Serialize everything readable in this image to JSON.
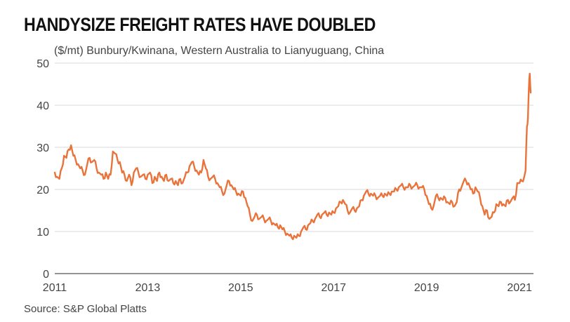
{
  "header": {
    "title": "HANDYSIZE FREIGHT RATES HAVE DOUBLED",
    "subtitle": "($/mt) Bunbury/Kwinana, Western Australia to Lianyuguang, China"
  },
  "footer": {
    "source": "Source: S&P Global Platts"
  },
  "colors": {
    "series": "#e8743b",
    "grid": "#d9d9d9",
    "axis": "#555555"
  },
  "chart_data": {
    "type": "line",
    "title": "HANDYSIZE FREIGHT RATES HAVE DOUBLED",
    "subtitle": "($/mt) Bunbury/Kwinana, Western Australia to Lianyuguang, China",
    "xlabel": "",
    "ylabel": "($/mt)",
    "xlim": [
      2011,
      2021.3
    ],
    "ylim": [
      0,
      50
    ],
    "x_ticks": [
      2011,
      2013,
      2015,
      2017,
      2019,
      2021
    ],
    "x_tick_labels": [
      "2011",
      "2013",
      "2015",
      "2017",
      "2019",
      "2021"
    ],
    "y_ticks": [
      0,
      10,
      20,
      30,
      40,
      50
    ],
    "y_tick_labels": [
      "0",
      "10",
      "20",
      "30",
      "40",
      "50"
    ],
    "grid": "horizontal",
    "legend": "none",
    "series": [
      {
        "points": [
          [
            2011.0,
            24
          ],
          [
            2011.05,
            23
          ],
          [
            2011.1,
            22.5
          ],
          [
            2011.15,
            25
          ],
          [
            2011.2,
            28
          ],
          [
            2011.25,
            27.5
          ],
          [
            2011.3,
            29.5
          ],
          [
            2011.35,
            30.5
          ],
          [
            2011.4,
            28
          ],
          [
            2011.45,
            27
          ],
          [
            2011.5,
            26
          ],
          [
            2011.55,
            25
          ],
          [
            2011.6,
            24.5
          ],
          [
            2011.65,
            23.5
          ],
          [
            2011.7,
            26
          ],
          [
            2011.75,
            27.5
          ],
          [
            2011.8,
            26.5
          ],
          [
            2011.85,
            27
          ],
          [
            2011.9,
            25
          ],
          [
            2011.95,
            24
          ],
          [
            2012.0,
            23.5
          ],
          [
            2012.05,
            22.5
          ],
          [
            2012.1,
            24
          ],
          [
            2012.15,
            22.5
          ],
          [
            2012.2,
            23.5
          ],
          [
            2012.25,
            29
          ],
          [
            2012.3,
            28.5
          ],
          [
            2012.35,
            27
          ],
          [
            2012.4,
            26.5
          ],
          [
            2012.45,
            24
          ],
          [
            2012.5,
            23.5
          ],
          [
            2012.55,
            22
          ],
          [
            2012.6,
            23.5
          ],
          [
            2012.65,
            21
          ],
          [
            2012.7,
            24
          ],
          [
            2012.75,
            25
          ],
          [
            2012.8,
            24
          ],
          [
            2012.85,
            23
          ],
          [
            2012.9,
            23.5
          ],
          [
            2012.95,
            22.5
          ],
          [
            2013.0,
            23.5
          ],
          [
            2013.05,
            24
          ],
          [
            2013.1,
            21.5
          ],
          [
            2013.15,
            23
          ],
          [
            2013.2,
            22
          ],
          [
            2013.25,
            24
          ],
          [
            2013.3,
            23
          ],
          [
            2013.35,
            22
          ],
          [
            2013.4,
            23.5
          ],
          [
            2013.45,
            22
          ],
          [
            2013.5,
            22.5
          ],
          [
            2013.55,
            21.5
          ],
          [
            2013.6,
            22
          ],
          [
            2013.65,
            21
          ],
          [
            2013.7,
            22.5
          ],
          [
            2013.75,
            21.5
          ],
          [
            2013.8,
            23
          ],
          [
            2013.85,
            24
          ],
          [
            2013.9,
            25.5
          ],
          [
            2013.95,
            26.5
          ],
          [
            2014.0,
            25.5
          ],
          [
            2014.05,
            24.5
          ],
          [
            2014.1,
            23.5
          ],
          [
            2014.15,
            24
          ],
          [
            2014.2,
            27
          ],
          [
            2014.25,
            25
          ],
          [
            2014.3,
            23
          ],
          [
            2014.35,
            22.5
          ],
          [
            2014.4,
            23
          ],
          [
            2014.45,
            22.5
          ],
          [
            2014.5,
            21.5
          ],
          [
            2014.55,
            20.5
          ],
          [
            2014.6,
            19.5
          ],
          [
            2014.65,
            19
          ],
          [
            2014.7,
            21
          ],
          [
            2014.75,
            22
          ],
          [
            2014.8,
            21
          ],
          [
            2014.85,
            20
          ],
          [
            2014.9,
            19.5
          ],
          [
            2014.95,
            19
          ],
          [
            2015.0,
            18.5
          ],
          [
            2015.05,
            19.5
          ],
          [
            2015.1,
            18
          ],
          [
            2015.15,
            16
          ],
          [
            2015.2,
            14
          ],
          [
            2015.25,
            12.5
          ],
          [
            2015.3,
            13.5
          ],
          [
            2015.35,
            14
          ],
          [
            2015.4,
            13
          ],
          [
            2015.45,
            13.5
          ],
          [
            2015.5,
            13
          ],
          [
            2015.55,
            12.5
          ],
          [
            2015.6,
            13
          ],
          [
            2015.65,
            12.5
          ],
          [
            2015.7,
            12
          ],
          [
            2015.75,
            11.5
          ],
          [
            2015.8,
            11
          ],
          [
            2015.85,
            11.5
          ],
          [
            2015.9,
            10.5
          ],
          [
            2015.95,
            10
          ],
          [
            2016.0,
            9.5
          ],
          [
            2016.05,
            9
          ],
          [
            2016.1,
            8.5
          ],
          [
            2016.15,
            9
          ],
          [
            2016.2,
            8.5
          ],
          [
            2016.25,
            9
          ],
          [
            2016.3,
            10
          ],
          [
            2016.35,
            11
          ],
          [
            2016.4,
            10.5
          ],
          [
            2016.45,
            11.5
          ],
          [
            2016.5,
            12
          ],
          [
            2016.55,
            12.5
          ],
          [
            2016.6,
            13
          ],
          [
            2016.65,
            14
          ],
          [
            2016.7,
            13.5
          ],
          [
            2016.75,
            14
          ],
          [
            2016.8,
            14.5
          ],
          [
            2016.85,
            14
          ],
          [
            2016.9,
            14.5
          ],
          [
            2016.95,
            14
          ],
          [
            2017.0,
            14.5
          ],
          [
            2017.05,
            15.5
          ],
          [
            2017.1,
            16
          ],
          [
            2017.15,
            17
          ],
          [
            2017.2,
            17.5
          ],
          [
            2017.25,
            16.5
          ],
          [
            2017.3,
            15
          ],
          [
            2017.35,
            14.5
          ],
          [
            2017.4,
            15.5
          ],
          [
            2017.45,
            15
          ],
          [
            2017.5,
            15.5
          ],
          [
            2017.55,
            16
          ],
          [
            2017.6,
            17.5
          ],
          [
            2017.65,
            18.5
          ],
          [
            2017.7,
            19.5
          ],
          [
            2017.75,
            19
          ],
          [
            2017.8,
            19
          ],
          [
            2017.85,
            18.5
          ],
          [
            2017.9,
            18.5
          ],
          [
            2017.95,
            18
          ],
          [
            2018.0,
            18.5
          ],
          [
            2018.05,
            18.5
          ],
          [
            2018.1,
            19
          ],
          [
            2018.15,
            18.5
          ],
          [
            2018.2,
            19
          ],
          [
            2018.25,
            19.5
          ],
          [
            2018.3,
            19.5
          ],
          [
            2018.35,
            20
          ],
          [
            2018.4,
            20.5
          ],
          [
            2018.45,
            21
          ],
          [
            2018.5,
            20.5
          ],
          [
            2018.55,
            20.5
          ],
          [
            2018.6,
            20.5
          ],
          [
            2018.65,
            21
          ],
          [
            2018.7,
            20.5
          ],
          [
            2018.75,
            21
          ],
          [
            2018.8,
            21
          ],
          [
            2018.85,
            20.5
          ],
          [
            2018.9,
            20.5
          ],
          [
            2018.95,
            20
          ],
          [
            2019.0,
            18.5
          ],
          [
            2019.05,
            16.5
          ],
          [
            2019.1,
            15.5
          ],
          [
            2019.15,
            16
          ],
          [
            2019.2,
            18.5
          ],
          [
            2019.25,
            18
          ],
          [
            2019.3,
            18
          ],
          [
            2019.35,
            17.5
          ],
          [
            2019.4,
            18
          ],
          [
            2019.45,
            17
          ],
          [
            2019.5,
            16.5
          ],
          [
            2019.55,
            17
          ],
          [
            2019.6,
            16
          ],
          [
            2019.65,
            17
          ],
          [
            2019.7,
            20
          ],
          [
            2019.75,
            20.5
          ],
          [
            2019.8,
            22
          ],
          [
            2019.85,
            22
          ],
          [
            2019.9,
            21.5
          ],
          [
            2019.95,
            20
          ],
          [
            2020.0,
            19
          ],
          [
            2020.05,
            20.5
          ],
          [
            2020.1,
            19.5
          ],
          [
            2020.15,
            18
          ],
          [
            2020.2,
            16
          ],
          [
            2020.25,
            14
          ],
          [
            2020.3,
            15
          ],
          [
            2020.35,
            13
          ],
          [
            2020.4,
            13.5
          ],
          [
            2020.45,
            14.5
          ],
          [
            2020.5,
            16.5
          ],
          [
            2020.55,
            16
          ],
          [
            2020.6,
            17
          ],
          [
            2020.65,
            16.5
          ],
          [
            2020.7,
            16
          ],
          [
            2020.75,
            17.5
          ],
          [
            2020.8,
            17
          ],
          [
            2020.85,
            18
          ],
          [
            2020.9,
            17.5
          ],
          [
            2020.95,
            21.5
          ],
          [
            2021.0,
            21.5
          ],
          [
            2021.05,
            22
          ],
          [
            2021.1,
            23
          ],
          [
            2021.13,
            24.5
          ],
          [
            2021.16,
            35
          ],
          [
            2021.18,
            37
          ],
          [
            2021.2,
            44
          ],
          [
            2021.22,
            47.5
          ],
          [
            2021.24,
            43
          ]
        ]
      }
    ]
  }
}
